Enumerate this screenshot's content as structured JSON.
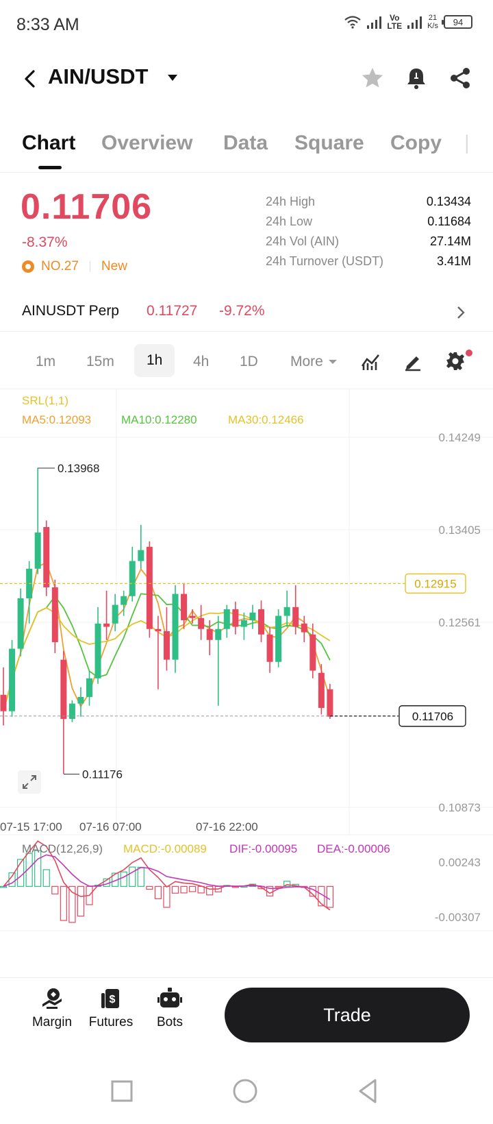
{
  "status_bar": {
    "time": "8:33 AM",
    "network_label": "Vo\nLTE",
    "speed_value": "21",
    "speed_unit": "K/s",
    "battery": "94"
  },
  "header": {
    "pair": "AIN/USDT"
  },
  "tabs": [
    "Chart",
    "Overview",
    "Data",
    "Square",
    "Copy"
  ],
  "active_tab": "Chart",
  "ticker": {
    "price": "0.11706",
    "change": "-8.37%",
    "rank": "NO.27",
    "badge": "New",
    "stats": [
      {
        "label": "24h High",
        "value": "0.13434"
      },
      {
        "label": "24h Low",
        "value": "0.11684"
      },
      {
        "label": "24h Vol (AIN)",
        "value": "27.14M"
      },
      {
        "label": "24h Turnover (USDT)",
        "value": "3.41M"
      }
    ]
  },
  "perp": {
    "name": "AINUSDT Perp",
    "price": "0.11727",
    "change": "-9.72%"
  },
  "intervals": [
    "1m",
    "15m",
    "1h",
    "4h",
    "1D"
  ],
  "active_interval": "1h",
  "more_label": "More",
  "indicators": {
    "srl": "SRL(1,1)",
    "ma5": "MA5:0.12093",
    "ma10": "MA10:0.12280",
    "ma30": "MA30:0.12466",
    "macd_title": "MACD(12,26,9)",
    "macd": "MACD:-0.00089",
    "dif": "DIF:-0.00095",
    "dea": "DEA:-0.00006"
  },
  "colors": {
    "up": "#2fbe85",
    "down": "#e8485e",
    "ma5": "#f0a030",
    "ma10": "#54c43c",
    "ma30": "#e5c22a",
    "dif": "#c336b9",
    "dea": "#e0495f"
  },
  "chart_data": {
    "type": "candlestick",
    "y_axis_ticks": [
      "0.14249",
      "0.13405",
      "0.12561",
      "0.10873"
    ],
    "y_ticks": [
      0.14249,
      0.13405,
      0.12561,
      0.10873
    ],
    "ylim": [
      0.10873,
      0.14249
    ],
    "x_axis_labels": [
      "07-15 17:00",
      "07-16 07:00",
      "07-16 22:00"
    ],
    "annotations": {
      "high": "0.13968",
      "low": "0.11176",
      "reference": "0.12915",
      "last": "0.11706"
    },
    "candles": [
      {
        "o": 0.119,
        "h": 0.1215,
        "l": 0.1162,
        "c": 0.1175
      },
      {
        "o": 0.1175,
        "h": 0.124,
        "l": 0.117,
        "c": 0.1232
      },
      {
        "o": 0.1232,
        "h": 0.1287,
        "l": 0.1225,
        "c": 0.1278
      },
      {
        "o": 0.1278,
        "h": 0.1312,
        "l": 0.1255,
        "c": 0.1305
      },
      {
        "o": 0.1305,
        "h": 0.1397,
        "l": 0.13,
        "c": 0.1338
      },
      {
        "o": 0.1343,
        "h": 0.1349,
        "l": 0.128,
        "c": 0.1288
      },
      {
        "o": 0.1288,
        "h": 0.1295,
        "l": 0.1228,
        "c": 0.1238
      },
      {
        "o": 0.1222,
        "h": 0.123,
        "l": 0.1118,
        "c": 0.1168
      },
      {
        "o": 0.1168,
        "h": 0.1185,
        "l": 0.1165,
        "c": 0.1182
      },
      {
        "o": 0.1182,
        "h": 0.1197,
        "l": 0.117,
        "c": 0.1188
      },
      {
        "o": 0.1188,
        "h": 0.1212,
        "l": 0.118,
        "c": 0.1205
      },
      {
        "o": 0.1205,
        "h": 0.127,
        "l": 0.12,
        "c": 0.1255
      },
      {
        "o": 0.1255,
        "h": 0.1285,
        "l": 0.124,
        "c": 0.1252
      },
      {
        "o": 0.1255,
        "h": 0.1282,
        "l": 0.1248,
        "c": 0.1272
      },
      {
        "o": 0.1272,
        "h": 0.1285,
        "l": 0.1262,
        "c": 0.128
      },
      {
        "o": 0.128,
        "h": 0.1325,
        "l": 0.1275,
        "c": 0.1312
      },
      {
        "o": 0.1312,
        "h": 0.1345,
        "l": 0.1305,
        "c": 0.1322
      },
      {
        "o": 0.1325,
        "h": 0.133,
        "l": 0.1242,
        "c": 0.125
      },
      {
        "o": 0.125,
        "h": 0.1262,
        "l": 0.1195,
        "c": 0.1248
      },
      {
        "o": 0.1248,
        "h": 0.127,
        "l": 0.1212,
        "c": 0.1222
      },
      {
        "o": 0.1222,
        "h": 0.129,
        "l": 0.121,
        "c": 0.1282
      },
      {
        "o": 0.1282,
        "h": 0.1292,
        "l": 0.125,
        "c": 0.1258
      },
      {
        "o": 0.1262,
        "h": 0.1268,
        "l": 0.1255,
        "c": 0.126
      },
      {
        "o": 0.126,
        "h": 0.1272,
        "l": 0.124,
        "c": 0.125
      },
      {
        "o": 0.125,
        "h": 0.1258,
        "l": 0.1226,
        "c": 0.124
      },
      {
        "o": 0.124,
        "h": 0.1262,
        "l": 0.118,
        "c": 0.125
      },
      {
        "o": 0.125,
        "h": 0.1272,
        "l": 0.1242,
        "c": 0.1268
      },
      {
        "o": 0.1268,
        "h": 0.1275,
        "l": 0.1245,
        "c": 0.1252
      },
      {
        "o": 0.1252,
        "h": 0.1265,
        "l": 0.124,
        "c": 0.1258
      },
      {
        "o": 0.1258,
        "h": 0.1272,
        "l": 0.125,
        "c": 0.1265
      },
      {
        "o": 0.1268,
        "h": 0.1276,
        "l": 0.1238,
        "c": 0.1245
      },
      {
        "o": 0.1245,
        "h": 0.1252,
        "l": 0.121,
        "c": 0.122
      },
      {
        "o": 0.122,
        "h": 0.1268,
        "l": 0.1215,
        "c": 0.1262
      },
      {
        "o": 0.1262,
        "h": 0.1285,
        "l": 0.1252,
        "c": 0.127
      },
      {
        "o": 0.127,
        "h": 0.129,
        "l": 0.1245,
        "c": 0.1252
      },
      {
        "o": 0.1255,
        "h": 0.1262,
        "l": 0.1238,
        "c": 0.1247
      },
      {
        "o": 0.1245,
        "h": 0.1255,
        "l": 0.1205,
        "c": 0.1212
      },
      {
        "o": 0.121,
        "h": 0.1218,
        "l": 0.1172,
        "c": 0.1178
      },
      {
        "o": 0.1195,
        "h": 0.12,
        "l": 0.1168,
        "c": 0.117
      }
    ],
    "macd_axis_ticks": [
      "0.00243",
      "-0.00307"
    ],
    "macd_ylim": [
      -0.00307,
      0.00243
    ]
  },
  "bottom_nav": {
    "margin": "Margin",
    "futures": "Futures",
    "bots": "Bots",
    "trade": "Trade"
  }
}
